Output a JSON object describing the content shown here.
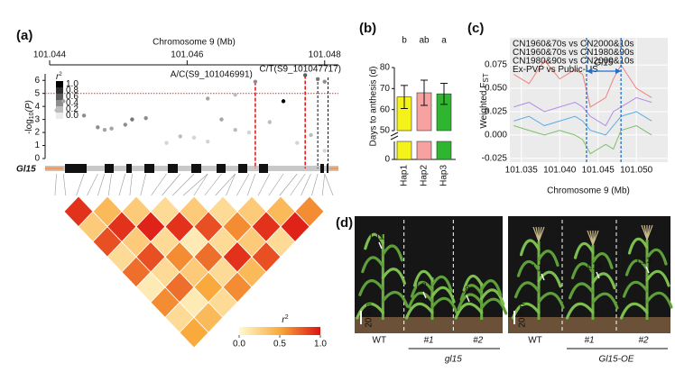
{
  "panel_labels": [
    "(a)",
    "(b)",
    "(c)",
    "(d)"
  ],
  "chart_data": [
    {
      "type": "manhattan",
      "xlabel": "Chromosome 9 (Mb)",
      "xlim": [
        101.044,
        101.0482
      ],
      "xticks": [
        101.044,
        101.046,
        101.048
      ],
      "ylabel": {
        "main": "-log",
        "sub": "10",
        "tail": "(P)"
      },
      "ylim": [
        0,
        6.5
      ],
      "yticks": [
        0,
        1,
        2,
        3,
        4,
        5,
        6
      ],
      "threshold": 5,
      "threshold_color": "#e03030",
      "x": [
        101.0441,
        101.0442,
        101.0445,
        101.0447,
        101.0448,
        101.0449,
        101.0451,
        101.0452,
        101.0454,
        101.0457,
        101.0459,
        101.0461,
        101.0463,
        101.0463,
        101.0465,
        101.0467,
        101.0467,
        101.0469,
        101.046991,
        101.0472,
        101.0474,
        101.0476,
        101.047717,
        101.0478,
        101.0479,
        101.048,
        101.048
      ],
      "y": [
        3.7,
        4.4,
        3.3,
        2.4,
        2.2,
        2.3,
        2.6,
        3.0,
        3.1,
        1.2,
        1.7,
        1.6,
        1.3,
        4.6,
        3.0,
        2.2,
        4.9,
        2.0,
        5.9,
        2.8,
        4.4,
        1.2,
        6.4,
        1.8,
        6.1,
        5.9,
        0.6
      ],
      "r2": [
        0.2,
        0.3,
        0.4,
        0.4,
        0.3,
        0.3,
        0.4,
        0.5,
        0.4,
        0.1,
        0.2,
        0.1,
        0.1,
        0.3,
        0.3,
        0.2,
        0.2,
        0.1,
        0.4,
        0.2,
        1.0,
        0.1,
        0.6,
        0.2,
        0.5,
        0.4,
        0.1
      ],
      "legend": {
        "title": "r",
        "title_sup": "2",
        "ticks": [
          {
            "value": 1,
            "label": "1.0"
          },
          {
            "value": 0.8,
            "label": "0.8"
          },
          {
            "value": 0.6,
            "label": "0.6"
          },
          {
            "value": 0.4,
            "label": "0.4"
          },
          {
            "value": 0.2,
            "label": "0.2"
          },
          {
            "value": 0,
            "label": "0.0"
          }
        ]
      },
      "annotations": [
        {
          "label": "A/C(S9_101046991)",
          "x": 101.046991,
          "y": 5.9
        },
        {
          "label": "C/T(S9_101047717)",
          "x": 101.047717,
          "y": 6.4
        }
      ],
      "gene": "Gl15",
      "ld": {
        "r2": [
          [
            0.9,
            0.3,
            0.8,
            0.2,
            0.7,
            0.1,
            0.6,
            0.2,
            0.5
          ],
          [
            0.4,
            0.9,
            0.3,
            0.8,
            0.2,
            0.7,
            0.1,
            0.4
          ],
          [
            0.3,
            0.95,
            0.2,
            0.6,
            0.3,
            0.5,
            0.2
          ],
          [
            0.2,
            0.9,
            0.1,
            0.7,
            0.2,
            0.6
          ],
          [
            0.3,
            0.8,
            0.2,
            0.9,
            0.4
          ],
          [
            0.2,
            0.6,
            0.3,
            0.8
          ],
          [
            0.3,
            0.9,
            0.2
          ],
          [
            0.4,
            0.95
          ],
          [
            0.6
          ]
        ],
        "legend": {
          "title": "r",
          "title_sup": "2",
          "ticks": [
            {
              "value": 0,
              "label": "0.0"
            },
            {
              "value": 0.5,
              "label": "0.5"
            },
            {
              "value": 1,
              "label": "1.0"
            }
          ]
        }
      }
    },
    {
      "type": "bar",
      "categories": [
        "Hap1",
        "Hap2",
        "Hap3"
      ],
      "values": [
        66,
        68,
        67.5
      ],
      "errors": [
        5.5,
        6,
        5
      ],
      "colors": [
        "#f5f21a",
        "#f7a1a1",
        "#2fb52f"
      ],
      "letters": [
        "b",
        "ab",
        "a"
      ],
      "ylabel": "Days to anthesis (d)",
      "ylim": [
        50,
        80
      ],
      "yticks": [
        50,
        60,
        70,
        80
      ],
      "ylim_lower": [
        0,
        50
      ],
      "yticks_lower": [
        0
      ]
    },
    {
      "type": "line",
      "xlabel": "Chromosome 9 (Mb)",
      "ylabel": {
        "main": "Weighted F",
        "sub": "ST"
      },
      "x": [
        101.034,
        101.036,
        101.038,
        101.04,
        101.042,
        101.043,
        101.044,
        101.046,
        101.047,
        101.048,
        101.05,
        101.052
      ],
      "series": [
        {
          "name": "CN1960&70s vs CN2000&10s",
          "color": "#f08080",
          "values": [
            0.065,
            0.055,
            0.08,
            0.06,
            0.07,
            0.065,
            0.03,
            0.04,
            0.06,
            0.075,
            0.05,
            0.04
          ]
        },
        {
          "name": "CN1960&70s vs CN1980&90s",
          "color": "#b48ce6",
          "values": [
            0.03,
            0.035,
            0.025,
            0.03,
            0.035,
            0.03,
            0.02,
            0.01,
            0.025,
            0.03,
            0.04,
            0.035
          ]
        },
        {
          "name": "CN1980&90s vs CN2000&10s",
          "color": "#5aaee6",
          "values": [
            0.015,
            0.02,
            0.01,
            0.015,
            0.02,
            0.015,
            0.005,
            0.0,
            0.01,
            0.02,
            0.025,
            0.015
          ]
        },
        {
          "name": "Ex-PVP vs Public-US",
          "color": "#7cc06a",
          "values": [
            0.01,
            0.005,
            0.0,
            0.005,
            0.0,
            -0.005,
            -0.02,
            -0.01,
            -0.015,
            0.005,
            0.01,
            0.0
          ]
        }
      ],
      "xlim": [
        101.0335,
        101.0541
      ],
      "xticks": [
        101.035,
        {
          "value": 101.04,
          "label": "101.040"
        },
        101.045,
        {
          "value": 101.05,
          "label": "101.050"
        }
      ],
      "ylim": [
        -0.029,
        0.104
      ],
      "yticks": [
        -0.025,
        {
          "value": 0,
          "label": "0.000"
        },
        0.025,
        {
          "value": 0.05,
          "label": "0.050"
        },
        0.075
      ],
      "grid": true,
      "legend": "top-left",
      "region": {
        "x": [
          101.0435,
          101.048
        ],
        "label": "Gl15"
      }
    }
  ],
  "photos": [
    {
      "leaf_labels": [
        "L11",
        "L8",
        "L8"
      ],
      "scale": "20 cm",
      "lines": [
        "WT",
        "#1",
        "#2"
      ],
      "genotype": "gl15"
    },
    {
      "leaf_labels": [
        "L11",
        "L14",
        "L13"
      ],
      "scale": "20 cm",
      "lines": [
        "WT",
        "#1",
        "#2"
      ],
      "genotype": "Gl15-OE"
    }
  ]
}
